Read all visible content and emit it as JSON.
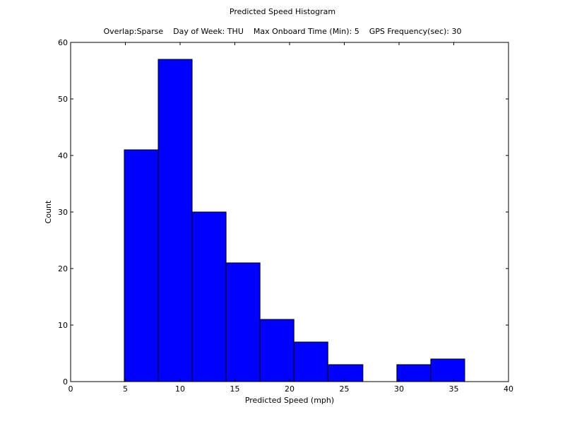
{
  "chart_data": {
    "type": "bar",
    "title": "Predicted Speed Histogram",
    "subtitle": "Overlap:Sparse    Day of Week: THU    Max Onboard Time (Min): 5    GPS Frequency(sec): 30",
    "xlabel": "Predicted Speed (mph)",
    "ylabel": "Count",
    "xlim": [
      0,
      40
    ],
    "ylim": [
      0,
      60
    ],
    "xticks": [
      0,
      5,
      10,
      15,
      20,
      25,
      30,
      35,
      40
    ],
    "yticks": [
      0,
      10,
      20,
      30,
      40,
      50,
      60
    ],
    "bar_color": "#0000ff",
    "edge_color": "#000000",
    "grid": false,
    "bins": [
      {
        "x0": 4.9,
        "x1": 8.0,
        "value": 41
      },
      {
        "x0": 8.0,
        "x1": 11.1,
        "value": 57
      },
      {
        "x0": 11.1,
        "x1": 14.2,
        "value": 30
      },
      {
        "x0": 14.2,
        "x1": 17.3,
        "value": 21
      },
      {
        "x0": 17.3,
        "x1": 20.4,
        "value": 11
      },
      {
        "x0": 20.4,
        "x1": 23.5,
        "value": 7
      },
      {
        "x0": 23.5,
        "x1": 26.7,
        "value": 3
      },
      {
        "x0": 26.7,
        "x1": 29.8,
        "value": 0
      },
      {
        "x0": 29.8,
        "x1": 32.9,
        "value": 3
      },
      {
        "x0": 32.9,
        "x1": 36.0,
        "value": 4
      }
    ]
  }
}
